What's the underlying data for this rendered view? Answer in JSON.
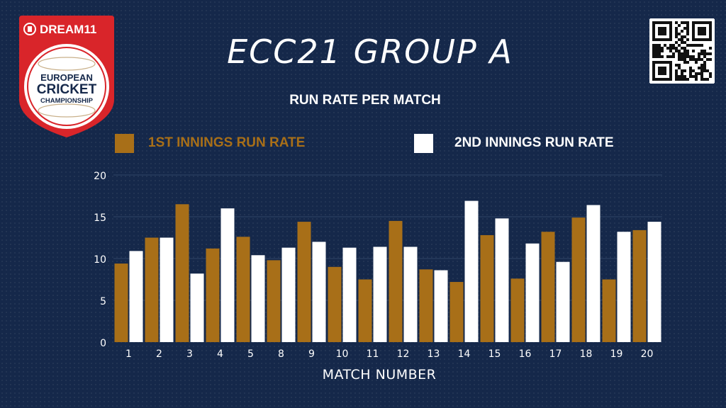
{
  "header": {
    "title": "ECC21 GROUP A",
    "subtitle": "RUN RATE PER MATCH"
  },
  "logo": {
    "brand": "DREAM11",
    "line1": "EUROPEAN",
    "line2": "CRICKET",
    "line3": "CHAMPIONSHIP",
    "brand_color": "#d9252a"
  },
  "colors": {
    "background": "#15284a",
    "series1": "#a86f18",
    "series2": "#ffffff",
    "text": "#ffffff",
    "gridline": "#2e4466"
  },
  "chart_data": {
    "type": "bar",
    "title": "RUN RATE PER MATCH",
    "xlabel": "MATCH NUMBER",
    "ylabel": "",
    "ylim": [
      0,
      20
    ],
    "yticks": [
      0,
      5,
      10,
      15,
      20
    ],
    "grid": true,
    "legend_position": "top",
    "categories": [
      "1",
      "2",
      "3",
      "4",
      "5",
      "8",
      "9",
      "10",
      "11",
      "12",
      "13",
      "14",
      "15",
      "16",
      "17",
      "18",
      "19",
      "20"
    ],
    "series": [
      {
        "name": "1ST INNINGS RUN RATE",
        "color": "#a86f18",
        "values": [
          9.4,
          12.5,
          16.5,
          11.2,
          12.6,
          9.8,
          14.4,
          9.0,
          7.5,
          14.5,
          8.7,
          7.2,
          12.8,
          7.6,
          13.2,
          14.9,
          7.5,
          13.4
        ]
      },
      {
        "name": "2ND INNINGS RUN RATE",
        "color": "#ffffff",
        "values": [
          10.9,
          12.5,
          8.2,
          16.0,
          10.4,
          11.3,
          12.0,
          11.3,
          11.4,
          11.4,
          8.6,
          16.9,
          14.8,
          11.8,
          9.6,
          16.4,
          13.2,
          14.4
        ]
      }
    ]
  }
}
